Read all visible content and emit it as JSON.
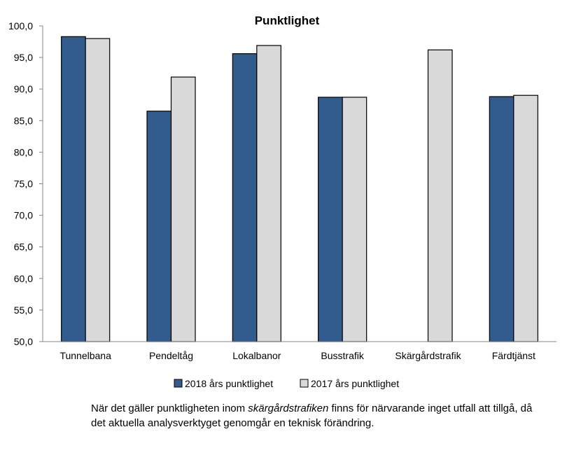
{
  "chart_data": {
    "type": "bar",
    "title": "Punktlighet",
    "xlabel": "",
    "ylabel": "",
    "ylim": [
      50,
      100
    ],
    "yticks": [
      "50,0",
      "55,0",
      "60,0",
      "65,0",
      "70,0",
      "75,0",
      "80,0",
      "85,0",
      "90,0",
      "95,0",
      "100,0"
    ],
    "grid": false,
    "legend_position": "bottom",
    "categories": [
      "Tunnelbana",
      "Pendeltåg",
      "Lokalbanor",
      "Busstrafik",
      "Skärgårdstrafik",
      "Färdtjänst"
    ],
    "series": [
      {
        "name": "2018 års punktlighet",
        "color": "#335C8E",
        "values": [
          98.3,
          86.5,
          95.6,
          88.7,
          null,
          88.8
        ]
      },
      {
        "name": "2017 års punktlighet",
        "color": "#D9D9D9",
        "values": [
          98.0,
          91.9,
          96.9,
          88.7,
          96.2,
          89.0
        ]
      }
    ]
  },
  "note": {
    "part1": "När det gäller punktligheten inom ",
    "emphasis": "skärgårdstrafiken",
    "part2": " finns för närvarande inget utfall att tillgå, då det aktuella analysverktyget genomgår en teknisk förändring."
  }
}
